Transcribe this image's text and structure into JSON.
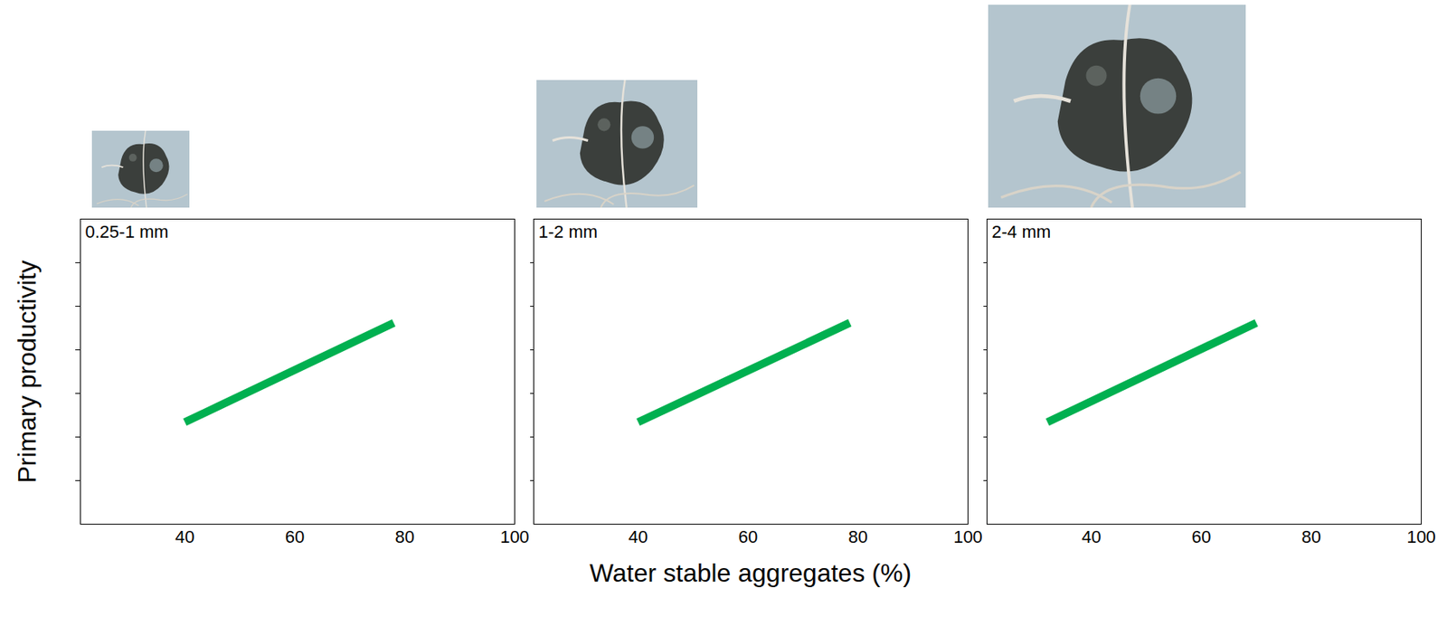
{
  "chart_data": [
    {
      "type": "line",
      "title": "0.25-1 mm",
      "x": [
        40,
        78
      ],
      "values": [
        2.34,
        4.62
      ],
      "color": "#00b050",
      "xlim": [
        21,
        100
      ],
      "xticks": [
        40,
        60,
        80,
        100
      ],
      "ylim": [
        0,
        7
      ],
      "yticks": [
        1,
        2,
        3,
        4,
        5,
        6
      ],
      "tick_labels": "x",
      "ylabel": "Primary productivity"
    },
    {
      "type": "line",
      "title": "1-2 mm",
      "x": [
        40,
        78.5
      ],
      "values": [
        2.34,
        4.62
      ],
      "color": "#00b050",
      "xlim": [
        21,
        100
      ],
      "xticks": [
        40,
        60,
        80,
        100
      ],
      "ylim": [
        0,
        7
      ],
      "yticks": [
        1,
        2,
        3,
        4,
        5,
        6
      ],
      "tick_labels": "x",
      "xlabel": "Water stable aggregates (%)"
    },
    {
      "type": "line",
      "title": "2-4 mm",
      "x": [
        32,
        70
      ],
      "values": [
        2.34,
        4.62
      ],
      "color": "#00b050",
      "xlim": [
        21,
        100
      ],
      "xticks": [
        40,
        60,
        80,
        100
      ],
      "ylim": [
        0,
        7
      ],
      "yticks": [
        1,
        2,
        3,
        4,
        5,
        6
      ],
      "tick_labels": "x"
    }
  ]
}
